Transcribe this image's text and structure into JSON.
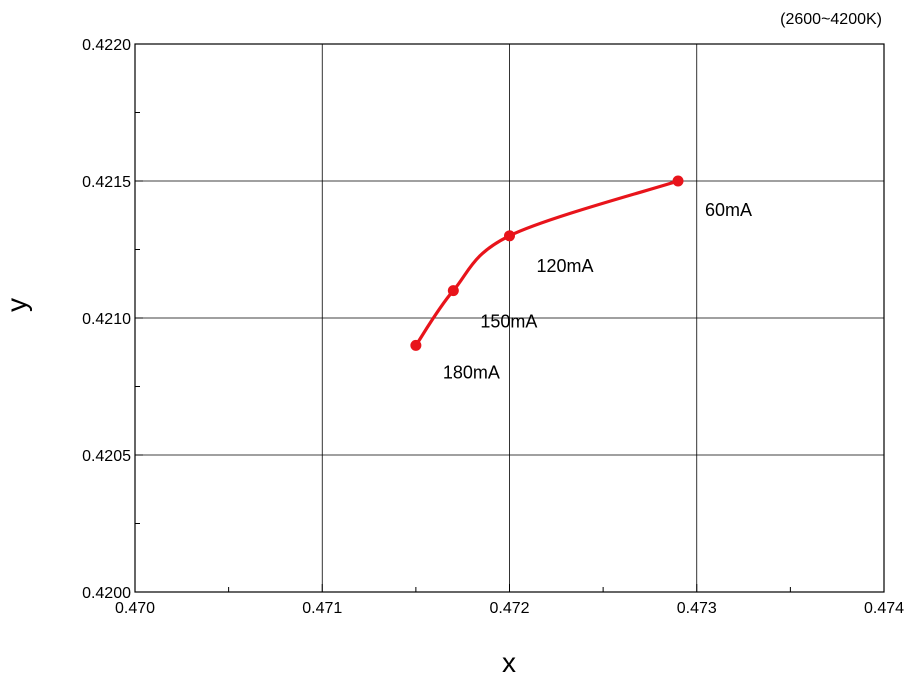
{
  "chart_data": {
    "type": "line",
    "title": "",
    "note": "(2600~4200K)",
    "xlabel": "x",
    "ylabel": "y",
    "xlim": [
      0.47,
      0.474
    ],
    "ylim": [
      0.42,
      0.422
    ],
    "grid": true,
    "x_ticks": [
      {
        "value": 0.47,
        "label": "0.470"
      },
      {
        "value": 0.471,
        "label": "0.471"
      },
      {
        "value": 0.472,
        "label": "0.472"
      },
      {
        "value": 0.473,
        "label": "0.473"
      },
      {
        "value": 0.474,
        "label": "0.474"
      }
    ],
    "y_ticks": [
      {
        "value": 0.42,
        "label": "0.4200"
      },
      {
        "value": 0.4205,
        "label": "0.4205"
      },
      {
        "value": 0.421,
        "label": "0.4210"
      },
      {
        "value": 0.4215,
        "label": "0.4215"
      },
      {
        "value": 0.422,
        "label": "0.4220"
      }
    ],
    "series": [
      {
        "color": "#e8141b",
        "points": [
          {
            "x": 0.4715,
            "y": 0.4209,
            "label": "180mA"
          },
          {
            "x": 0.4717,
            "y": 0.4211,
            "label": "150mA"
          },
          {
            "x": 0.472,
            "y": 0.4213,
            "label": "120mA"
          },
          {
            "x": 0.4729,
            "y": 0.4215,
            "label": "60mA"
          }
        ]
      }
    ]
  }
}
